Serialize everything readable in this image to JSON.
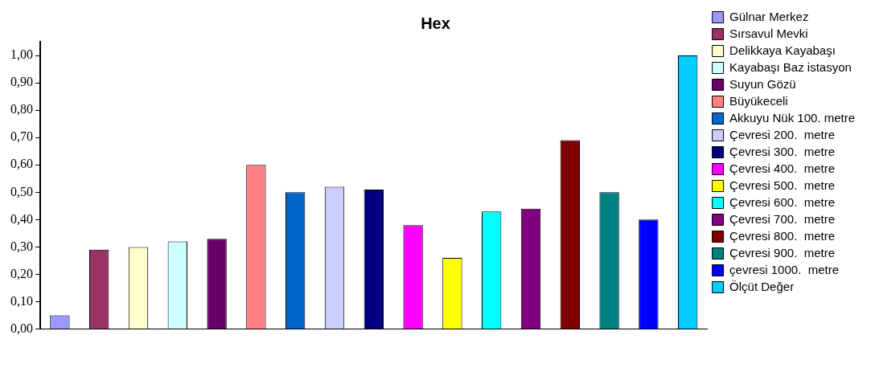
{
  "chart_data": {
    "type": "bar",
    "title": "Hex",
    "categories": [
      null
    ],
    "series": [
      {
        "name": "Gülnar Merkez",
        "color": "#9999ff",
        "values": [
          0.05
        ]
      },
      {
        "name": "Sırsavul Mevki",
        "color": "#993366",
        "values": [
          0.29
        ]
      },
      {
        "name": "Delikkaya Kayabaşı",
        "color": "#ffffcc",
        "values": [
          0.3
        ]
      },
      {
        "name": "Kayabaşı Baz istasyon",
        "color": "#ccffff",
        "values": [
          0.32
        ]
      },
      {
        "name": "Suyun Gözü",
        "color": "#660066",
        "values": [
          0.33
        ]
      },
      {
        "name": "Büyükeceli",
        "color": "#ff8080",
        "values": [
          0.6
        ]
      },
      {
        "name": "Akkuyu Nük 100. metre",
        "color": "#0066cc",
        "values": [
          0.5
        ]
      },
      {
        "name": "Çevresi 200.  metre",
        "color": "#ccccff",
        "values": [
          0.52
        ]
      },
      {
        "name": "Çevresi 300.  metre",
        "color": "#000080",
        "values": [
          0.51
        ]
      },
      {
        "name": "Çevresi 400.  metre",
        "color": "#ff00ff",
        "values": [
          0.38
        ]
      },
      {
        "name": "Çevresi 500.  metre",
        "color": "#ffff00",
        "values": [
          0.26
        ]
      },
      {
        "name": "Çevresi 600.  metre",
        "color": "#00ffff",
        "values": [
          0.43
        ]
      },
      {
        "name": "Çevresi 700.  metre",
        "color": "#800080",
        "values": [
          0.44
        ]
      },
      {
        "name": "Çevresi 800.  metre",
        "color": "#800000",
        "values": [
          0.69
        ]
      },
      {
        "name": "Çevresi 900.  metre",
        "color": "#008080",
        "values": [
          0.5
        ]
      },
      {
        "name": "çevresi 1000.  metre",
        "color": "#0000ff",
        "values": [
          0.4
        ]
      },
      {
        "name": "Ölçüt Değer",
        "color": "#00ccff",
        "values": [
          1.0
        ]
      }
    ],
    "ylim": [
      0,
      1.05
    ],
    "yticks": [
      {
        "value": 0,
        "label": "0,00"
      },
      {
        "value": 0.1,
        "label": "0,10"
      },
      {
        "value": 0.2,
        "label": "0,20"
      },
      {
        "value": 0.3,
        "label": "0,30"
      },
      {
        "value": 0.4,
        "label": "0,40"
      },
      {
        "value": 0.5,
        "label": "0,50"
      },
      {
        "value": 0.6,
        "label": "0,60"
      },
      {
        "value": 0.7,
        "label": "0,70"
      },
      {
        "value": 0.8,
        "label": "0,80"
      },
      {
        "value": 0.9,
        "label": "0,90"
      },
      {
        "value": 1,
        "label": "1,00"
      }
    ],
    "grid": false,
    "legend": "right"
  }
}
